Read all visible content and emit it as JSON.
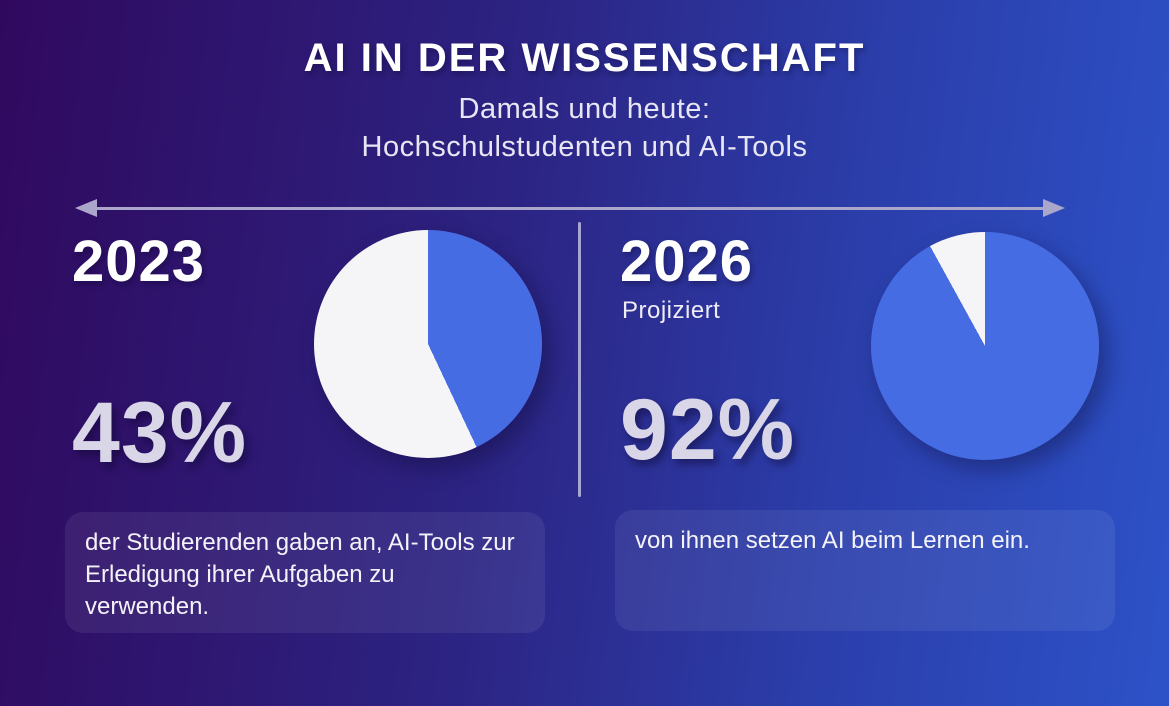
{
  "page": {
    "title": "AI IN DER WISSENSCHAFT",
    "subtitle_line1": "Damals und heute:",
    "subtitle_line2": "Hochschulstudenten und AI-Tools"
  },
  "panels": {
    "left": {
      "year": "2023",
      "percent": "43%",
      "description": "der Studierenden gaben an, AI-Tools zur Erledigung ihrer Aufgaben zu verwenden."
    },
    "right": {
      "year": "2026",
      "note": "Projiziert",
      "percent": "92%",
      "description": "von ihnen setzen AI beim Lernen ein."
    }
  },
  "colors": {
    "pie_fill_blue": "#466ce4",
    "pie_rest_white": "#f5f5f7",
    "accent_percent_text": "#d9d6e8",
    "arrow_line": "#aba7cb",
    "background_left": "#30095e",
    "background_right": "#2d52c8"
  },
  "chart_data": [
    {
      "type": "pie",
      "year": "2023",
      "values": [
        43,
        57
      ],
      "segment_colors": [
        "#466ce4",
        "#f5f5f7"
      ],
      "start": "top",
      "direction": "clockwise",
      "highlight_percent": 43
    },
    {
      "type": "pie",
      "year": "2026",
      "note": "Projiziert",
      "values": [
        92,
        8
      ],
      "segment_colors": [
        "#466ce4",
        "#f5f5f7"
      ],
      "start": "top",
      "direction": "clockwise",
      "highlight_percent": 92
    }
  ]
}
